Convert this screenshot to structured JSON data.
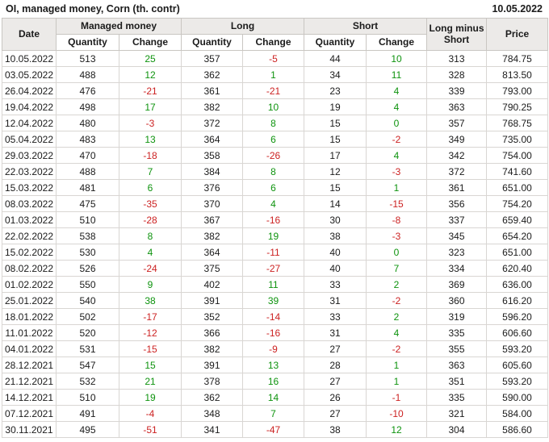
{
  "chart_data": {
    "type": "table",
    "title": "OI, managed money, Corn (th. contr)",
    "as_of_date": "10.05.2022",
    "column_groups": [
      {
        "label": "Date",
        "span": 1
      },
      {
        "label": "Managed money",
        "span": 2
      },
      {
        "label": "Long",
        "span": 2
      },
      {
        "label": "Short",
        "span": 2
      },
      {
        "label": "Long minus Short",
        "span": 1
      },
      {
        "label": "Price",
        "span": 1
      }
    ],
    "sub_headers": {
      "quantity": "Quantity",
      "change": "Change"
    },
    "rows": [
      {
        "date": "10.05.2022",
        "mm_qty": 513,
        "mm_chg": 25,
        "long_qty": 357,
        "long_chg": -5,
        "short_qty": 44,
        "short_chg": 10,
        "lms": 313,
        "price": "784.75"
      },
      {
        "date": "03.05.2022",
        "mm_qty": 488,
        "mm_chg": 12,
        "long_qty": 362,
        "long_chg": 1,
        "short_qty": 34,
        "short_chg": 11,
        "lms": 328,
        "price": "813.50"
      },
      {
        "date": "26.04.2022",
        "mm_qty": 476,
        "mm_chg": -21,
        "long_qty": 361,
        "long_chg": -21,
        "short_qty": 23,
        "short_chg": 4,
        "lms": 339,
        "price": "793.00"
      },
      {
        "date": "19.04.2022",
        "mm_qty": 498,
        "mm_chg": 17,
        "long_qty": 382,
        "long_chg": 10,
        "short_qty": 19,
        "short_chg": 4,
        "lms": 363,
        "price": "790.25"
      },
      {
        "date": "12.04.2022",
        "mm_qty": 480,
        "mm_chg": -3,
        "long_qty": 372,
        "long_chg": 8,
        "short_qty": 15,
        "short_chg": 0,
        "lms": 357,
        "price": "768.75"
      },
      {
        "date": "05.04.2022",
        "mm_qty": 483,
        "mm_chg": 13,
        "long_qty": 364,
        "long_chg": 6,
        "short_qty": 15,
        "short_chg": -2,
        "lms": 349,
        "price": "735.00"
      },
      {
        "date": "29.03.2022",
        "mm_qty": 470,
        "mm_chg": -18,
        "long_qty": 358,
        "long_chg": -26,
        "short_qty": 17,
        "short_chg": 4,
        "lms": 342,
        "price": "754.00"
      },
      {
        "date": "22.03.2022",
        "mm_qty": 488,
        "mm_chg": 7,
        "long_qty": 384,
        "long_chg": 8,
        "short_qty": 12,
        "short_chg": -3,
        "lms": 372,
        "price": "741.60"
      },
      {
        "date": "15.03.2022",
        "mm_qty": 481,
        "mm_chg": 6,
        "long_qty": 376,
        "long_chg": 6,
        "short_qty": 15,
        "short_chg": 1,
        "lms": 361,
        "price": "651.00"
      },
      {
        "date": "08.03.2022",
        "mm_qty": 475,
        "mm_chg": -35,
        "long_qty": 370,
        "long_chg": 4,
        "short_qty": 14,
        "short_chg": -15,
        "lms": 356,
        "price": "754.20"
      },
      {
        "date": "01.03.2022",
        "mm_qty": 510,
        "mm_chg": -28,
        "long_qty": 367,
        "long_chg": -16,
        "short_qty": 30,
        "short_chg": -8,
        "lms": 337,
        "price": "659.40"
      },
      {
        "date": "22.02.2022",
        "mm_qty": 538,
        "mm_chg": 8,
        "long_qty": 382,
        "long_chg": 19,
        "short_qty": 38,
        "short_chg": -3,
        "lms": 345,
        "price": "654.20"
      },
      {
        "date": "15.02.2022",
        "mm_qty": 530,
        "mm_chg": 4,
        "long_qty": 364,
        "long_chg": -11,
        "short_qty": 40,
        "short_chg": 0,
        "lms": 323,
        "price": "651.00"
      },
      {
        "date": "08.02.2022",
        "mm_qty": 526,
        "mm_chg": -24,
        "long_qty": 375,
        "long_chg": -27,
        "short_qty": 40,
        "short_chg": 7,
        "lms": 334,
        "price": "620.40"
      },
      {
        "date": "01.02.2022",
        "mm_qty": 550,
        "mm_chg": 9,
        "long_qty": 402,
        "long_chg": 11,
        "short_qty": 33,
        "short_chg": 2,
        "lms": 369,
        "price": "636.00"
      },
      {
        "date": "25.01.2022",
        "mm_qty": 540,
        "mm_chg": 38,
        "long_qty": 391,
        "long_chg": 39,
        "short_qty": 31,
        "short_chg": -2,
        "lms": 360,
        "price": "616.20"
      },
      {
        "date": "18.01.2022",
        "mm_qty": 502,
        "mm_chg": -17,
        "long_qty": 352,
        "long_chg": -14,
        "short_qty": 33,
        "short_chg": 2,
        "lms": 319,
        "price": "596.20"
      },
      {
        "date": "11.01.2022",
        "mm_qty": 520,
        "mm_chg": -12,
        "long_qty": 366,
        "long_chg": -16,
        "short_qty": 31,
        "short_chg": 4,
        "lms": 335,
        "price": "606.60"
      },
      {
        "date": "04.01.2022",
        "mm_qty": 531,
        "mm_chg": -15,
        "long_qty": 382,
        "long_chg": -9,
        "short_qty": 27,
        "short_chg": -2,
        "lms": 355,
        "price": "593.20"
      },
      {
        "date": "28.12.2021",
        "mm_qty": 547,
        "mm_chg": 15,
        "long_qty": 391,
        "long_chg": 13,
        "short_qty": 28,
        "short_chg": 1,
        "lms": 363,
        "price": "605.60"
      },
      {
        "date": "21.12.2021",
        "mm_qty": 532,
        "mm_chg": 21,
        "long_qty": 378,
        "long_chg": 16,
        "short_qty": 27,
        "short_chg": 1,
        "lms": 351,
        "price": "593.20"
      },
      {
        "date": "14.12.2021",
        "mm_qty": 510,
        "mm_chg": 19,
        "long_qty": 362,
        "long_chg": 14,
        "short_qty": 26,
        "short_chg": -1,
        "lms": 335,
        "price": "590.00"
      },
      {
        "date": "07.12.2021",
        "mm_qty": 491,
        "mm_chg": -4,
        "long_qty": 348,
        "long_chg": 7,
        "short_qty": 27,
        "short_chg": -10,
        "lms": 321,
        "price": "584.00"
      },
      {
        "date": "30.11.2021",
        "mm_qty": 495,
        "mm_chg": -51,
        "long_qty": 341,
        "long_chg": -47,
        "short_qty": 38,
        "short_chg": 12,
        "lms": 304,
        "price": "586.60"
      }
    ]
  },
  "colors": {
    "positive": "#0e930e",
    "negative": "#cc2222",
    "header_bg": "#eceae8",
    "header_grid": "#c9c6c2",
    "grid": "#d9d6d3",
    "text": "#1b1b1b"
  }
}
